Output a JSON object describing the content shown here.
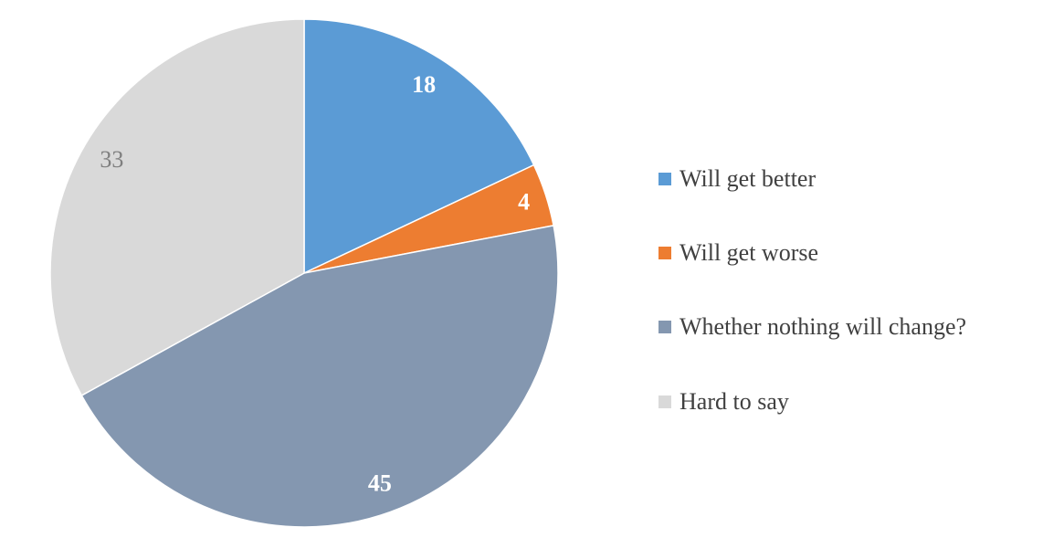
{
  "chart_data": {
    "type": "pie",
    "start_angle": "top, clockwise",
    "legend_position": "right",
    "categories": [
      "Will get better",
      "Will get worse",
      "Whether nothing will change?",
      "Hard to say"
    ],
    "values": [
      18,
      4,
      45,
      33
    ],
    "colors": [
      "#5B9BD5",
      "#ED7D31",
      "#8497B0",
      "#D9D9D9"
    ],
    "data_labels": [
      "18",
      "4",
      "45",
      "33"
    ],
    "label_colors": [
      "#FFFFFF",
      "#FFFFFF",
      "#FFFFFF",
      "#7F7F7F"
    ],
    "label_bold": [
      true,
      true,
      true,
      false
    ]
  }
}
